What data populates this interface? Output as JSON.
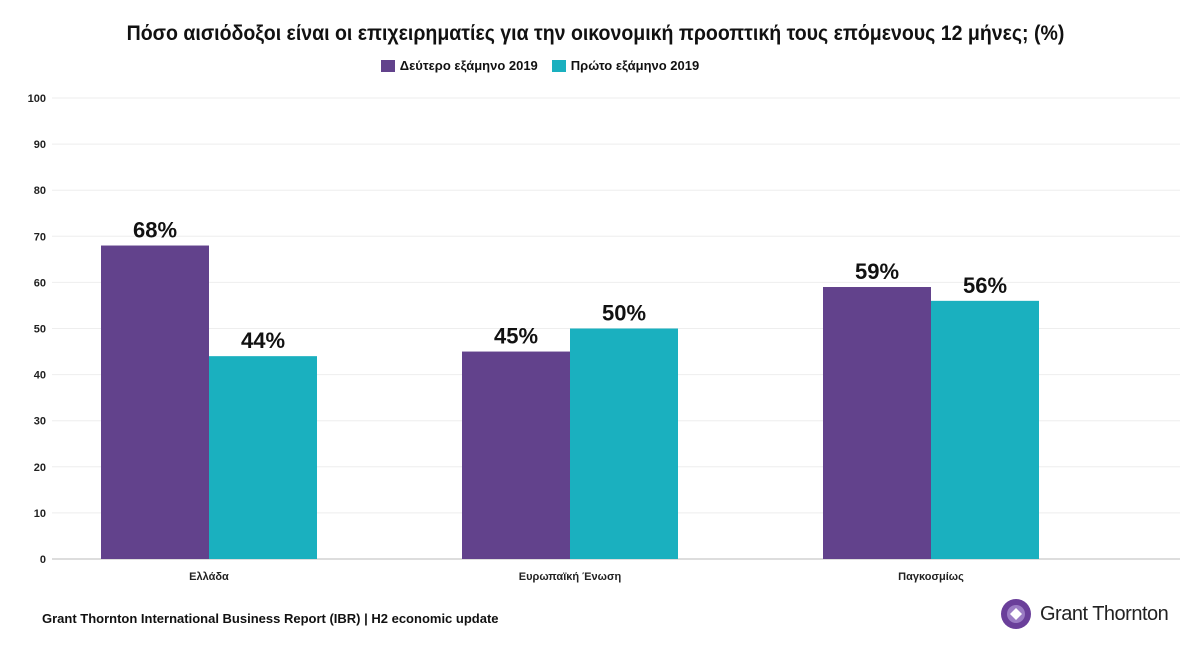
{
  "chart_data": {
    "type": "bar",
    "title": "Πόσο αισιόδοξοι είναι οι επιχειρηματίες για την οικονομική προοπτική τους επόμενους 12 μήνες; (%)",
    "categories": [
      "Ελλάδα",
      "Ευρωπαϊκή Ένωση",
      "Παγκοσμίως"
    ],
    "series": [
      {
        "name": "Δεύτερο εξάμηνο 2019",
        "values": [
          68,
          45,
          59
        ],
        "labels": [
          "68%",
          "45%",
          "59%"
        ],
        "color": "#62428c"
      },
      {
        "name": "Πρώτο εξάμηνο 2019",
        "values": [
          44,
          50,
          56
        ],
        "labels": [
          "44%",
          "50%",
          "56%"
        ],
        "color": "#1ab0bf"
      }
    ],
    "ylim": [
      0,
      100
    ],
    "yticks": [
      0,
      10,
      20,
      30,
      40,
      50,
      60,
      70,
      80,
      90,
      100
    ],
    "grid": true,
    "legend": "top"
  },
  "footer": {
    "source": "Grant Thornton International Business Report (IBR) | H2 economic update",
    "logo_text": "Grant Thornton"
  }
}
